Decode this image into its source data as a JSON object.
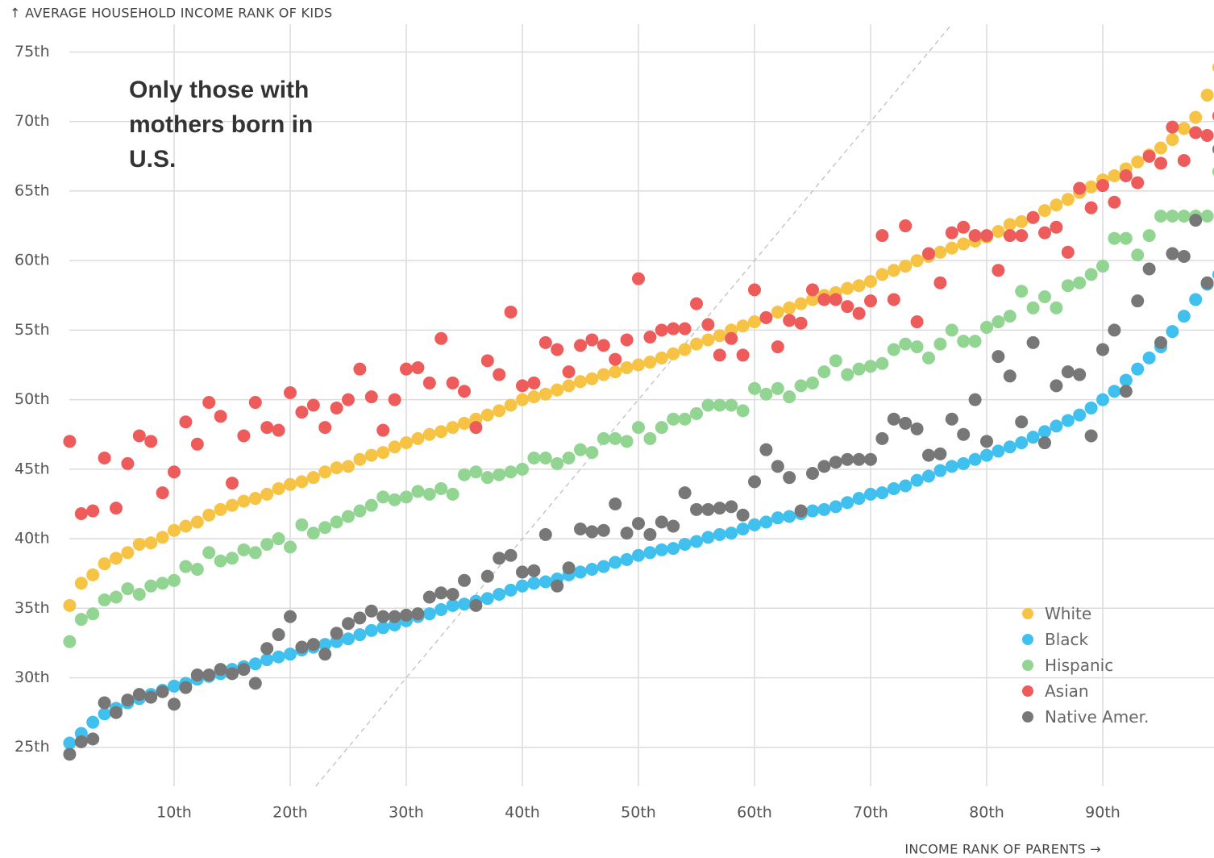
{
  "chart_data": {
    "type": "scatter",
    "y_axis_title": "↑ AVERAGE HOUSEHOLD INCOME RANK OF KIDS",
    "x_axis_title": "INCOME RANK OF PARENTS →",
    "annotation": "Only those with mothers born in U.S.",
    "xlim": [
      0,
      100
    ],
    "ylim": [
      22.2,
      77
    ],
    "xticks": [
      {
        "value": 10,
        "label": "10th"
      },
      {
        "value": 20,
        "label": "20th"
      },
      {
        "value": 30,
        "label": "30th"
      },
      {
        "value": 40,
        "label": "40th"
      },
      {
        "value": 50,
        "label": "50th"
      },
      {
        "value": 60,
        "label": "60th"
      },
      {
        "value": 70,
        "label": "70th"
      },
      {
        "value": 80,
        "label": "80th"
      },
      {
        "value": 90,
        "label": "90th"
      }
    ],
    "yticks": [
      {
        "value": 25,
        "label": "25th"
      },
      {
        "value": 30,
        "label": "30th"
      },
      {
        "value": 35,
        "label": "35th"
      },
      {
        "value": 40,
        "label": "40th"
      },
      {
        "value": 45,
        "label": "45th"
      },
      {
        "value": 50,
        "label": "50th"
      },
      {
        "value": 55,
        "label": "55th"
      },
      {
        "value": 60,
        "label": "60th"
      },
      {
        "value": 65,
        "label": "65th"
      },
      {
        "value": 70,
        "label": "70th"
      },
      {
        "value": 75,
        "label": "75th"
      }
    ],
    "grid": true,
    "legend": "lower right",
    "x": [
      1,
      2,
      3,
      4,
      5,
      6,
      7,
      8,
      9,
      10,
      11,
      12,
      13,
      14,
      15,
      16,
      17,
      18,
      19,
      20,
      21,
      22,
      23,
      24,
      25,
      26,
      27,
      28,
      29,
      30,
      31,
      32,
      33,
      34,
      35,
      36,
      37,
      38,
      39,
      40,
      41,
      42,
      43,
      44,
      45,
      46,
      47,
      48,
      49,
      50,
      51,
      52,
      53,
      54,
      55,
      56,
      57,
      58,
      59,
      60,
      61,
      62,
      63,
      64,
      65,
      66,
      67,
      68,
      69,
      70,
      71,
      72,
      73,
      74,
      75,
      76,
      77,
      78,
      79,
      80,
      81,
      82,
      83,
      84,
      85,
      86,
      87,
      88,
      89,
      90,
      91,
      92,
      93,
      94,
      95,
      96,
      97,
      98,
      99,
      100
    ],
    "series": [
      {
        "name": "White",
        "color": "#f6c344",
        "values": [
          35.2,
          36.8,
          37.4,
          38.2,
          38.6,
          39.0,
          39.6,
          39.7,
          40.1,
          40.6,
          40.9,
          41.2,
          41.7,
          42.1,
          42.4,
          42.7,
          42.9,
          43.2,
          43.6,
          43.9,
          44.1,
          44.4,
          44.8,
          45.1,
          45.2,
          45.7,
          46.0,
          46.2,
          46.6,
          46.9,
          47.2,
          47.5,
          47.7,
          48.0,
          48.3,
          48.6,
          48.9,
          49.2,
          49.6,
          50.0,
          50.2,
          50.4,
          50.7,
          51.0,
          51.3,
          51.5,
          51.8,
          52.0,
          52.3,
          52.5,
          52.7,
          53.0,
          53.3,
          53.6,
          54.0,
          54.3,
          54.6,
          55.0,
          55.3,
          55.6,
          55.9,
          56.3,
          56.6,
          56.9,
          57.2,
          57.5,
          57.7,
          58.0,
          58.2,
          58.5,
          59.0,
          59.3,
          59.6,
          60.0,
          60.3,
          60.6,
          60.9,
          61.2,
          61.4,
          61.7,
          62.1,
          62.6,
          62.8,
          63.1,
          63.6,
          64.0,
          64.4,
          64.9,
          65.3,
          65.8,
          66.1,
          66.6,
          67.1,
          67.6,
          68.1,
          68.7,
          69.5,
          70.3,
          71.9,
          73.9
        ]
      },
      {
        "name": "Black",
        "color": "#3fc0ee",
        "values": [
          25.3,
          26.0,
          26.8,
          27.4,
          27.8,
          28.2,
          28.5,
          28.8,
          29.1,
          29.4,
          29.6,
          29.9,
          30.1,
          30.3,
          30.6,
          30.8,
          31.0,
          31.3,
          31.5,
          31.7,
          32.0,
          32.2,
          32.4,
          32.6,
          32.8,
          33.1,
          33.4,
          33.6,
          33.8,
          34.1,
          34.4,
          34.6,
          34.9,
          35.2,
          35.3,
          35.5,
          35.7,
          36.0,
          36.3,
          36.6,
          36.8,
          36.9,
          37.1,
          37.4,
          37.6,
          37.8,
          38.0,
          38.3,
          38.5,
          38.8,
          39.0,
          39.2,
          39.3,
          39.6,
          39.8,
          40.1,
          40.3,
          40.4,
          40.7,
          41.0,
          41.2,
          41.5,
          41.6,
          41.8,
          42.0,
          42.1,
          42.3,
          42.6,
          42.9,
          43.2,
          43.3,
          43.6,
          43.8,
          44.2,
          44.5,
          44.9,
          45.2,
          45.4,
          45.7,
          46.0,
          46.3,
          46.6,
          46.9,
          47.3,
          47.7,
          48.1,
          48.5,
          48.9,
          49.4,
          50.0,
          50.6,
          51.4,
          52.2,
          53.0,
          53.8,
          54.9,
          56.0,
          57.2,
          58.3,
          59.0
        ]
      },
      {
        "name": "Hispanic",
        "color": "#92d492",
        "values": [
          32.6,
          34.2,
          34.6,
          35.6,
          35.8,
          36.4,
          36.0,
          36.6,
          36.8,
          37.0,
          38.0,
          37.8,
          39.0,
          38.4,
          38.6,
          39.2,
          39.0,
          39.6,
          40.0,
          39.4,
          41.0,
          40.4,
          40.8,
          41.2,
          41.6,
          42.0,
          42.4,
          43.0,
          42.8,
          43.0,
          43.4,
          43.2,
          43.6,
          43.2,
          44.6,
          44.8,
          44.4,
          44.6,
          44.8,
          45.0,
          45.8,
          45.8,
          45.4,
          45.8,
          46.4,
          46.2,
          47.2,
          47.2,
          47.0,
          48.0,
          47.2,
          48.0,
          48.6,
          48.6,
          49.0,
          49.6,
          49.6,
          49.6,
          49.2,
          50.8,
          50.4,
          50.8,
          50.2,
          51.0,
          51.2,
          52.0,
          52.8,
          51.8,
          52.2,
          52.4,
          52.6,
          53.6,
          54.0,
          53.8,
          53.0,
          54.0,
          55.0,
          54.2,
          54.2,
          55.2,
          55.6,
          56.0,
          57.8,
          56.6,
          57.4,
          56.6,
          58.2,
          58.4,
          59.0,
          59.6,
          61.6,
          61.6,
          60.4,
          61.8,
          63.2,
          63.2,
          63.2,
          63.2,
          63.2,
          66.4
        ]
      },
      {
        "name": "Asian",
        "color": "#ee5b5b",
        "values": [
          47.0,
          41.8,
          42.0,
          45.8,
          42.2,
          45.4,
          47.4,
          47.0,
          43.3,
          44.8,
          48.4,
          46.8,
          49.8,
          48.8,
          44.0,
          47.4,
          49.8,
          48.0,
          47.8,
          50.5,
          49.1,
          49.6,
          48.0,
          49.4,
          50.0,
          52.2,
          50.2,
          47.8,
          50.0,
          52.2,
          52.3,
          51.2,
          54.4,
          51.2,
          50.6,
          48.0,
          52.8,
          51.8,
          56.3,
          51.0,
          51.2,
          54.1,
          53.6,
          52.0,
          53.9,
          54.3,
          53.9,
          52.9,
          54.3,
          58.7,
          54.5,
          55.0,
          55.1,
          55.1,
          56.9,
          55.4,
          53.2,
          54.4,
          53.2,
          57.9,
          55.9,
          53.8,
          55.7,
          55.5,
          57.9,
          57.2,
          57.2,
          56.7,
          56.2,
          57.1,
          61.8,
          57.2,
          62.5,
          55.6,
          60.5,
          58.4,
          62.0,
          62.4,
          61.8,
          61.8,
          59.3,
          61.8,
          61.8,
          63.1,
          62.0,
          62.4,
          60.6,
          65.2,
          63.8,
          65.4,
          64.2,
          66.1,
          65.6,
          67.5,
          67.0,
          69.6,
          67.2,
          69.2,
          69.0,
          70.4
        ]
      },
      {
        "name": "Native Amer.",
        "color": "#777777",
        "values": [
          24.5,
          25.4,
          25.6,
          28.2,
          27.5,
          28.4,
          28.8,
          28.6,
          29.0,
          28.1,
          29.3,
          30.2,
          30.2,
          30.6,
          30.3,
          30.6,
          29.6,
          32.1,
          33.1,
          34.4,
          32.2,
          32.4,
          31.7,
          33.2,
          33.9,
          34.3,
          34.8,
          34.4,
          34.4,
          34.5,
          34.6,
          35.8,
          36.1,
          36.0,
          37.0,
          35.2,
          37.3,
          38.6,
          38.8,
          37.6,
          37.7,
          40.3,
          36.6,
          37.9,
          40.7,
          40.5,
          40.6,
          42.5,
          40.4,
          41.1,
          40.3,
          41.2,
          40.9,
          43.3,
          42.1,
          42.1,
          42.2,
          42.3,
          41.7,
          44.1,
          46.4,
          45.2,
          44.4,
          42.0,
          44.7,
          45.2,
          45.5,
          45.7,
          45.7,
          45.7,
          47.2,
          48.6,
          48.3,
          47.9,
          46.0,
          46.1,
          48.6,
          47.5,
          50.0,
          47.0,
          53.1,
          51.7,
          48.4,
          54.1,
          46.9,
          51.0,
          52.0,
          51.8,
          47.4,
          53.6,
          55.0,
          50.6,
          57.1,
          59.4,
          54.1,
          60.5,
          60.3,
          62.9,
          58.4,
          68.0
        ]
      }
    ]
  }
}
